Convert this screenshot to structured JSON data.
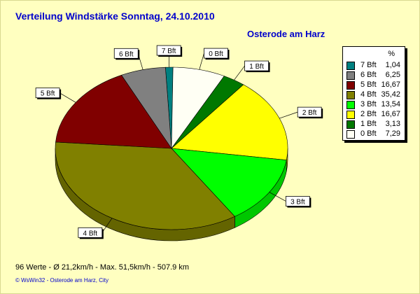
{
  "title": "Verteilung Windstärke  Sonntag, 24.10.2010",
  "location": "Osterode am Harz",
  "footer": {
    "stats": "96 Werte   -   Ø 21,2km/h  -  Max. 51,5km/h   -   507.9 km",
    "credit": "© WsWin32   -   Osterode am Harz, City"
  },
  "chart_data": {
    "type": "pie",
    "title": "Verteilung Windstärke  Sonntag, 24.10.2010",
    "subtitle": "Osterode am Harz",
    "legend_unit": "%",
    "legend_position": "right",
    "slices": [
      {
        "label": "7 Bft",
        "value": 1.04,
        "value_text": "1,04",
        "color": "#008080"
      },
      {
        "label": "0 Bft",
        "value": 7.29,
        "value_text": "7,29",
        "color": "#fffff4"
      },
      {
        "label": "1 Bft",
        "value": 3.13,
        "value_text": "3,13",
        "color": "#007800"
      },
      {
        "label": "2 Bft",
        "value": 16.67,
        "value_text": "16,67",
        "color": "#ffff00"
      },
      {
        "label": "3 Bft",
        "value": 13.54,
        "value_text": "13,54",
        "color": "#00ff00"
      },
      {
        "label": "4 Bft",
        "value": 35.42,
        "value_text": "35,42",
        "color": "#808000"
      },
      {
        "label": "5 Bft",
        "value": 16.67,
        "value_text": "16,67",
        "color": "#800000"
      },
      {
        "label": "6 Bft",
        "value": 6.25,
        "value_text": "6,25",
        "color": "#808080"
      }
    ],
    "legend_order": [
      "7 Bft",
      "6 Bft",
      "5 Bft",
      "4 Bft",
      "3 Bft",
      "2 Bft",
      "1 Bft",
      "0 Bft"
    ]
  }
}
